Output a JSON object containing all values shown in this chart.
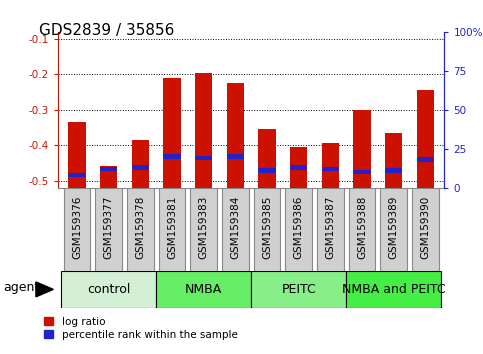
{
  "title": "GDS2839 / 35856",
  "samples": [
    "GSM159376",
    "GSM159377",
    "GSM159378",
    "GSM159381",
    "GSM159383",
    "GSM159384",
    "GSM159385",
    "GSM159386",
    "GSM159387",
    "GSM159388",
    "GSM159389",
    "GSM159390"
  ],
  "log_ratio": [
    -0.335,
    -0.46,
    -0.385,
    -0.21,
    -0.195,
    -0.225,
    -0.355,
    -0.405,
    -0.395,
    -0.3,
    -0.365,
    -0.245
  ],
  "percentile_pct": [
    8,
    12,
    13,
    20,
    19,
    20,
    11,
    13,
    12,
    10,
    11,
    18
  ],
  "groups": [
    {
      "label": "control",
      "start": 0,
      "end": 3,
      "color": "#d4f0d4"
    },
    {
      "label": "NMBA",
      "start": 3,
      "end": 6,
      "color": "#66ee66"
    },
    {
      "label": "PEITC",
      "start": 6,
      "end": 9,
      "color": "#88ee88"
    },
    {
      "label": "NMBA and PEITC",
      "start": 9,
      "end": 12,
      "color": "#44ee44"
    }
  ],
  "bar_color": "#cc1100",
  "blue_color": "#2222cc",
  "ylim_left": [
    -0.52,
    -0.08
  ],
  "ylim_right": [
    0,
    100
  ],
  "yticks_left": [
    -0.5,
    -0.4,
    -0.3,
    -0.2,
    -0.1
  ],
  "yticks_right": [
    0,
    25,
    50,
    75,
    100
  ],
  "background_color": "#ffffff",
  "plot_bg": "#ffffff",
  "axis_color_left": "#cc1100",
  "axis_color_right": "#2222cc",
  "tick_label_fontsize": 7.5,
  "title_fontsize": 11,
  "bar_width": 0.55,
  "group_label_fontsize": 9,
  "agent_fontsize": 9,
  "sample_box_color": "#d0d0d0",
  "sample_box_edge": "#888888"
}
